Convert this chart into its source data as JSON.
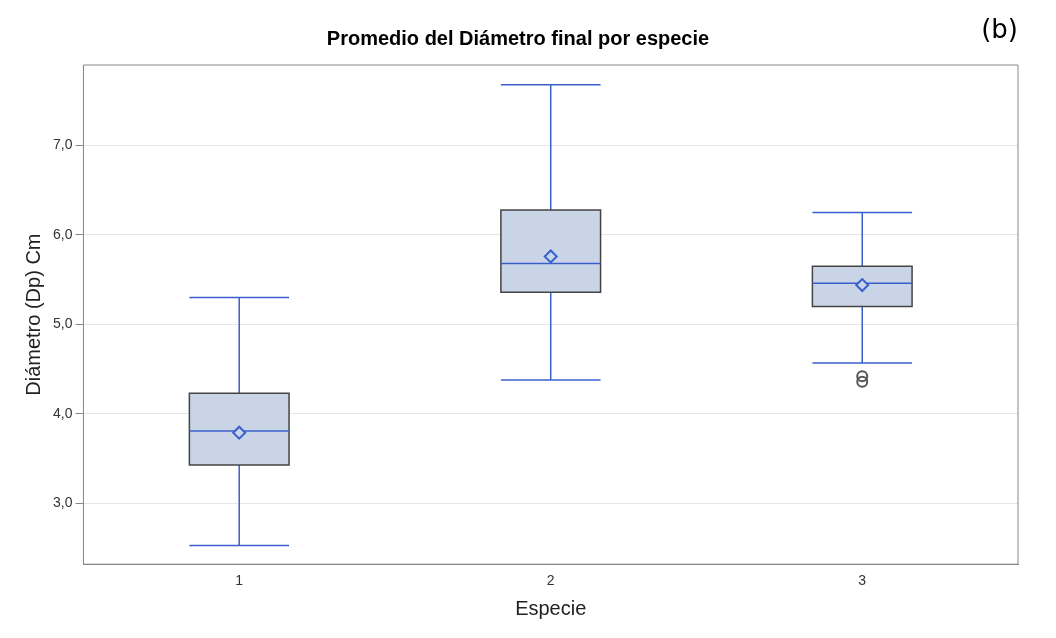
{
  "chart_data": {
    "type": "box",
    "title": "Promedio del Diámetro final por especie",
    "xlabel": "Especie",
    "ylabel": "Diámetro (Dp) Cm",
    "annotations": [
      "(b)"
    ],
    "categories": [
      "1",
      "2",
      "3"
    ],
    "series": [
      {
        "color": "#c9d5e6",
        "boxes": [
          {
            "low": 2.53,
            "q1": 3.43,
            "median": 3.81,
            "q3": 4.23,
            "high": 5.3,
            "mean": 3.79
          },
          {
            "low": 4.38,
            "q1": 5.36,
            "median": 5.68,
            "q3": 6.28,
            "high": 7.68,
            "mean": 5.76
          },
          {
            "low": 4.57,
            "q1": 5.2,
            "median": 5.46,
            "q3": 5.65,
            "high": 6.25,
            "mean": 5.44,
            "outliers": [
              4.42,
              4.36
            ]
          }
        ]
      }
    ],
    "ylim": [
      2.32,
      7.9
    ],
    "yticks": [
      {
        "value": 3,
        "label": "3,0"
      },
      {
        "value": 4,
        "label": "4,0"
      },
      {
        "value": 5,
        "label": "5,0"
      },
      {
        "value": 6,
        "label": "6,0"
      },
      {
        "value": 7,
        "label": "7,0"
      }
    ],
    "grid": "y",
    "legend": false,
    "marker": "diamond"
  }
}
